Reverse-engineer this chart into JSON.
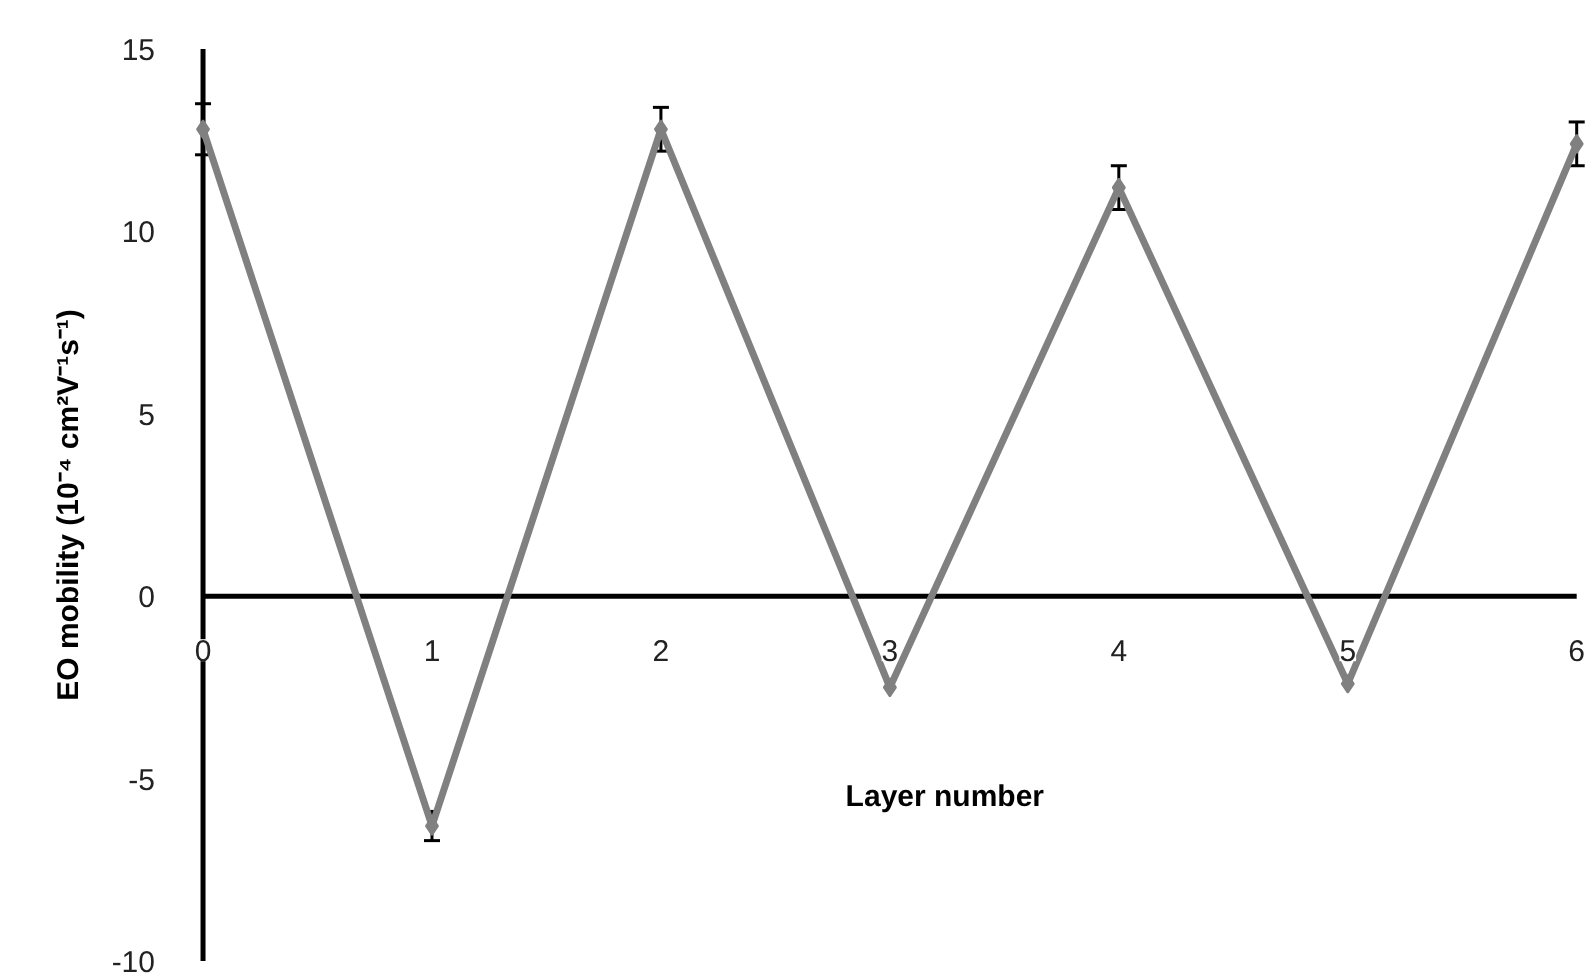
{
  "chart_data": {
    "type": "line",
    "xlabel": "Layer number",
    "ylabel": "EO mobility (10⁻⁴ cm²V⁻¹s⁻¹)",
    "x": [
      0,
      1,
      2,
      3,
      4,
      5,
      6
    ],
    "series": [
      {
        "color": "#808080",
        "values": [
          12.8,
          -6.3,
          12.8,
          -2.5,
          11.2,
          -2.4,
          12.4
        ],
        "errors": [
          0.7,
          0.4,
          0.6,
          null,
          0.6,
          null,
          0.6
        ]
      }
    ],
    "xlim": [
      0,
      6
    ],
    "ylim": [
      -10,
      15
    ],
    "xticks": [
      0,
      1,
      2,
      3,
      4,
      5,
      6
    ],
    "yticks": [
      -10,
      -5,
      0,
      5,
      10,
      15
    ],
    "grid": false,
    "marker": "diamond",
    "line_style": "solid"
  }
}
